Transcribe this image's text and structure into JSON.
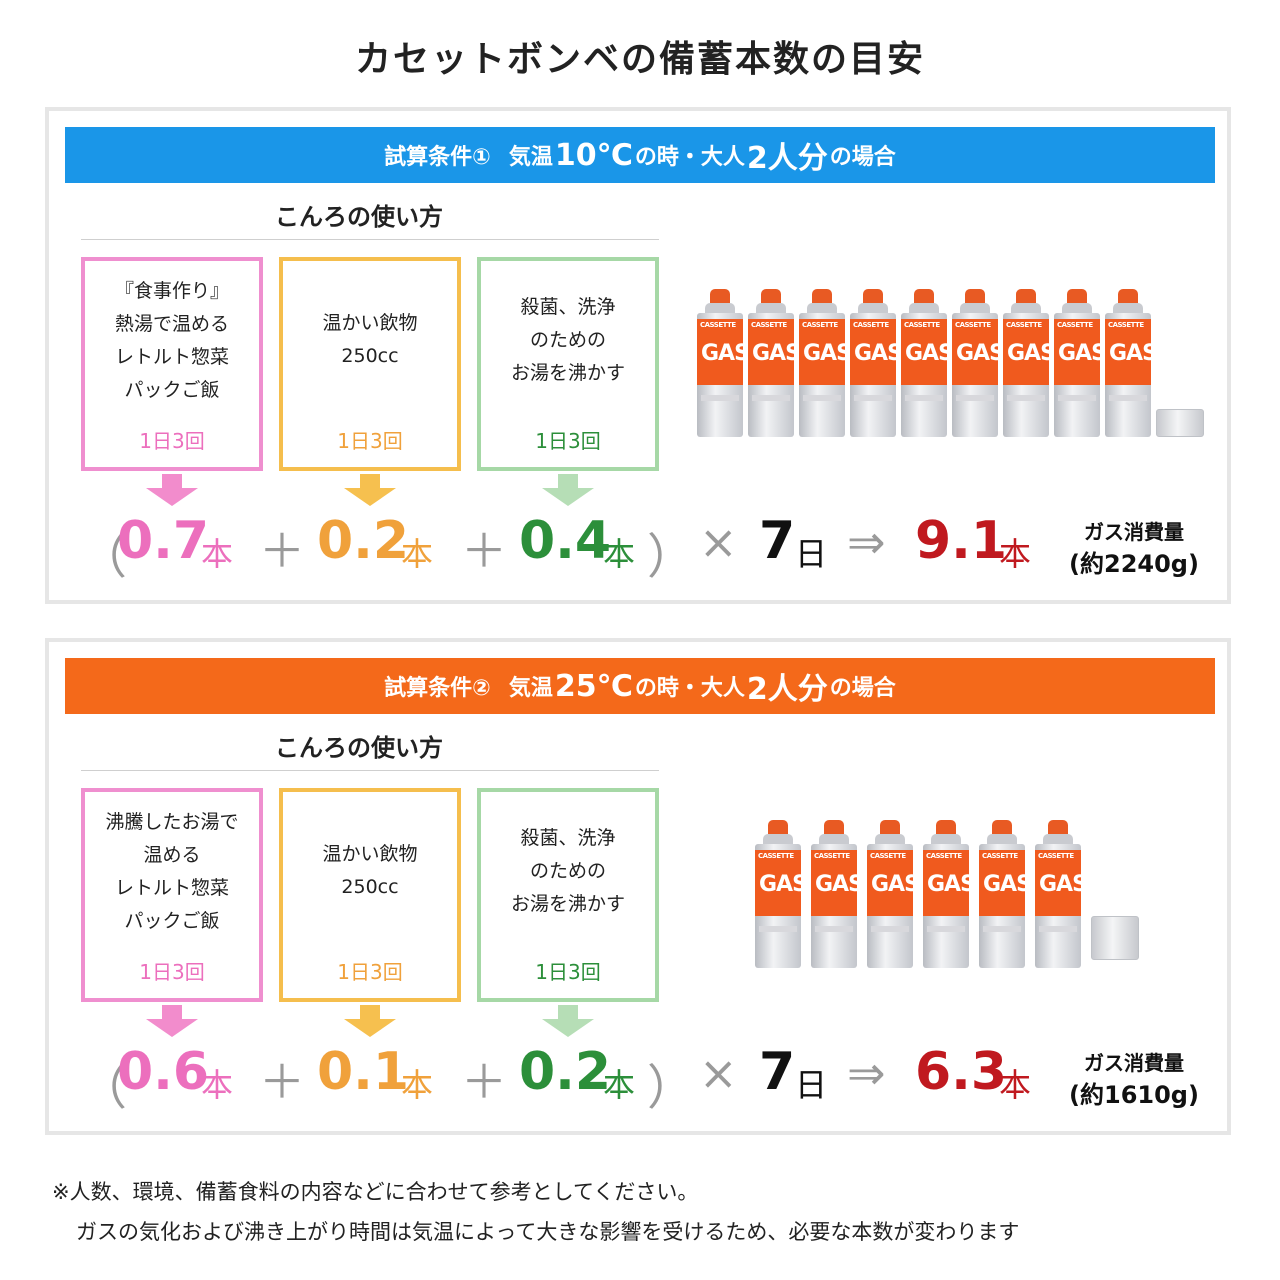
{
  "title": "カセットボンベの備蓄本数の目安",
  "colors": {
    "banner1": "#1a96e8",
    "banner2": "#f4691a",
    "pink": "#ec6fbd",
    "pink_border": "#ef8fcf",
    "orange": "#f0a13b",
    "orange_border": "#f5be4d",
    "green": "#2c8f3a",
    "green_border": "#a6d8a6",
    "red": "#c0191f"
  },
  "scenarios": [
    {
      "banner": {
        "prefix": "試算条件①",
        "pre": "気温",
        "temp": "10℃",
        "mid": "の時・大人",
        "count": "2人分",
        "post": "の場合"
      },
      "usage_heading": "こんろの使い方",
      "usages": [
        {
          "text": "『食事作り』\n熱湯で温める\nレトルト惣菜\nパックご飯",
          "freq": "1日3回"
        },
        {
          "text": "温かい飲物\n250cc",
          "freq": "1日3回"
        },
        {
          "text": "殺菌、洗浄\nのための\nお湯を沸かす",
          "freq": "1日3回"
        }
      ],
      "equation": {
        "open": "（",
        "v1": "0.7",
        "u1": "本",
        "plus1": "＋",
        "v2": "0.2",
        "u2": "本",
        "plus2": "＋",
        "v3": "0.4",
        "u3": "本",
        "close": "）",
        "times": "×",
        "days": "7",
        "day_unit": "日",
        "arrow": "⇒",
        "total": "9.1",
        "total_unit": "本",
        "consumption_label": "ガス消費量",
        "consumption_value": "(約2240g)"
      },
      "can_count": 9
    },
    {
      "banner": {
        "prefix": "試算条件②",
        "pre": "気温",
        "temp": "25℃",
        "mid": "の時・大人",
        "count": "2人分",
        "post": "の場合"
      },
      "usage_heading": "こんろの使い方",
      "usages": [
        {
          "text": "沸騰したお湯で\n温める\nレトルト惣菜\nパックご飯",
          "freq": "1日3回"
        },
        {
          "text": "温かい飲物\n250cc",
          "freq": "1日3回"
        },
        {
          "text": "殺菌、洗浄\nのための\nお湯を沸かす",
          "freq": "1日3回"
        }
      ],
      "equation": {
        "open": "（",
        "v1": "0.6",
        "u1": "本",
        "plus1": "＋",
        "v2": "0.1",
        "u2": "本",
        "plus2": "＋",
        "v3": "0.2",
        "u3": "本",
        "close": "）",
        "times": "×",
        "days": "7",
        "day_unit": "日",
        "arrow": "⇒",
        "total": "6.3",
        "total_unit": "本",
        "consumption_label": "ガス消費量",
        "consumption_value": "(約1610g)"
      },
      "can_count": 6
    }
  ],
  "can_label": {
    "top": "CASSETTE",
    "main": "GAS"
  },
  "notes": {
    "line1": "※人数、環境、備蓄食料の内容などに合わせて参考としてください。",
    "line2": "ガスの気化および沸き上がり時間は気温によって大きな影響を受けるため、必要な本数が変わります"
  }
}
